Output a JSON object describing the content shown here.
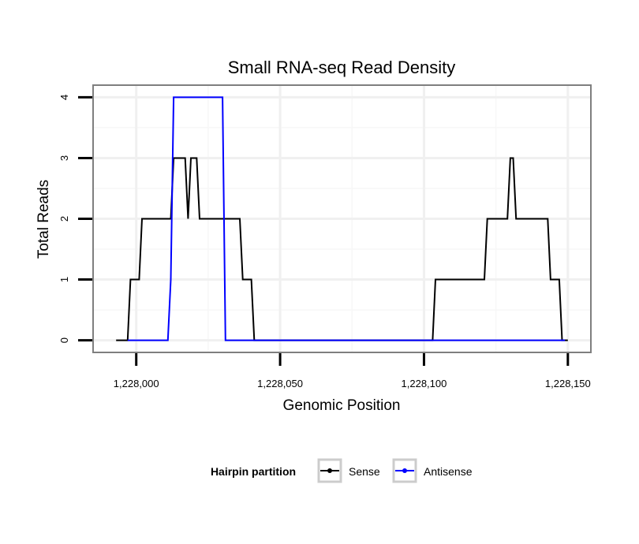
{
  "chart_data": {
    "type": "line",
    "title": "Small RNA-seq Read Density",
    "xlabel": "Genomic Position",
    "ylabel": "Total Reads",
    "xlim": [
      1227985,
      1228158
    ],
    "ylim": [
      -0.2,
      4.2
    ],
    "xticks": [
      1228000,
      1228050,
      1228100,
      1228150
    ],
    "xtick_labels": [
      "1,228,000",
      "1,228,050",
      "1,228,100",
      "1,228,150"
    ],
    "yticks": [
      0,
      1,
      2,
      3,
      4
    ],
    "ytick_labels": [
      "0",
      "1",
      "2",
      "3",
      "4"
    ],
    "grid": true,
    "legend": {
      "title": "Hairpin partition",
      "position": "bottom",
      "entries": [
        "Sense",
        "Antisense"
      ]
    },
    "series": [
      {
        "name": "Sense",
        "color": "#000000",
        "points": [
          [
            1227993,
            0
          ],
          [
            1227997,
            0
          ],
          [
            1227998,
            1
          ],
          [
            1228001,
            1
          ],
          [
            1228002,
            2
          ],
          [
            1228012,
            2
          ],
          [
            1228013,
            3
          ],
          [
            1228017,
            3
          ],
          [
            1228018,
            2
          ],
          [
            1228019,
            3
          ],
          [
            1228021,
            3
          ],
          [
            1228022,
            2
          ],
          [
            1228036,
            2
          ],
          [
            1228037,
            1
          ],
          [
            1228040,
            1
          ],
          [
            1228041,
            0
          ],
          [
            1228103,
            0
          ],
          [
            1228104,
            1
          ],
          [
            1228121,
            1
          ],
          [
            1228122,
            2
          ],
          [
            1228129,
            2
          ],
          [
            1228130,
            3
          ],
          [
            1228131,
            3
          ],
          [
            1228132,
            2
          ],
          [
            1228143,
            2
          ],
          [
            1228144,
            1
          ],
          [
            1228147,
            1
          ],
          [
            1228148,
            0
          ],
          [
            1228150,
            0
          ]
        ]
      },
      {
        "name": "Antisense",
        "color": "#0000ff",
        "points": [
          [
            1227997,
            0
          ],
          [
            1228011,
            0
          ],
          [
            1228012,
            1
          ],
          [
            1228013,
            4
          ],
          [
            1228030,
            4
          ],
          [
            1228031,
            0
          ],
          [
            1228149,
            0
          ]
        ]
      }
    ]
  }
}
